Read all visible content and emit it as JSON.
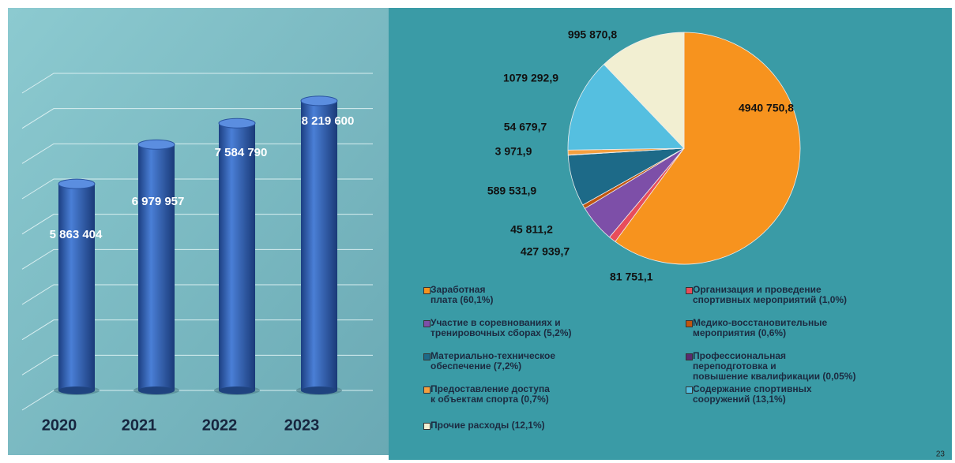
{
  "chart_data": [
    {
      "type": "bar",
      "categories": [
        "2020",
        "2021",
        "2022",
        "2023"
      ],
      "values": [
        5863404,
        6979957,
        7584790,
        8219600
      ],
      "value_labels": [
        "5 863 404",
        "6 979 957",
        "7 584 790",
        "8 219 600"
      ],
      "color": "#2f5fb3",
      "ylim": [
        0,
        9000000
      ],
      "yticks": [
        0,
        1000000,
        2000000,
        3000000,
        4000000,
        5000000,
        6000000,
        7000000,
        8000000,
        9000000
      ],
      "grid": true
    },
    {
      "type": "pie",
      "labels": [
        "Заработная\nплата (60,1%)",
        "Организация и проведение\nспортивных мероприятий (1,0%)",
        "Участие в соревнованиях и\nтренировочных сборах (5,2%)",
        "Медико-восстановительные\nмероприятия (0,6%)",
        "Материально-техническое\nобеспечение (7,2%)",
        "Профессиональная\nпереподготовка и\nповышение квалификации (0,05%)",
        "Предоставление доступа\nк объектам спорта (0,7%)",
        "Содержание спортивных\nсооружений (13,1%)",
        "Прочие расходы (12,1%)"
      ],
      "values": [
        4940750.8,
        81751.1,
        427939.7,
        45811.2,
        589531.9,
        3971.9,
        54679.7,
        1079292.9,
        995870.8
      ],
      "value_labels": [
        "4940 750,8",
        "81 751,1",
        "427 939,7",
        "45 811,2",
        "589 531,9",
        "3 971,9",
        "54 679,7",
        "1079 292,9",
        "995 870,8"
      ],
      "colors": [
        "#f7931e",
        "#e84d5b",
        "#7d4fa8",
        "#c0560f",
        "#1d6a88",
        "#5a2a6e",
        "#f5a040",
        "#55bfe0",
        "#f2efd2"
      ],
      "legend": "bottom"
    }
  ],
  "page_number": "23"
}
